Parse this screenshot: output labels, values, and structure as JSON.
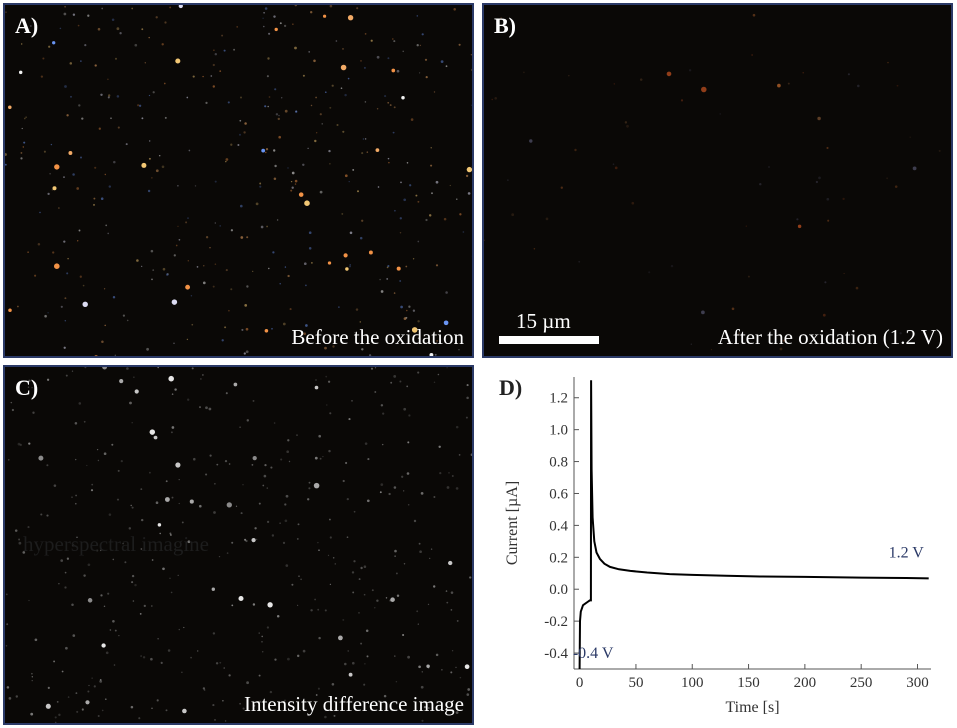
{
  "panels": {
    "a": {
      "label": "A)",
      "caption": "Before the oxidation"
    },
    "b": {
      "label": "B)",
      "caption": "After the oxidation (1.2 V)",
      "scale_bar": "15 µm"
    },
    "c": {
      "label": "C)",
      "caption": "Intensity difference image",
      "faint_text": "hyperspectral imagine"
    },
    "d": {
      "label": "D)"
    }
  },
  "chart_data": {
    "type": "line",
    "xlabel": "Time [s]",
    "ylabel": "Current [µA]",
    "xlim": [
      -5,
      312
    ],
    "ylim": [
      -0.5,
      1.33
    ],
    "xticks": [
      0,
      50,
      100,
      150,
      200,
      250,
      300
    ],
    "yticks": [
      -0.4,
      -0.2,
      0.0,
      0.2,
      0.4,
      0.6,
      0.8,
      1.0,
      1.2
    ],
    "annotations": [
      {
        "text": "1.2 V",
        "x": 290,
        "y": 0.2
      },
      {
        "text": "-0.4 V",
        "x": 12,
        "y": -0.43
      }
    ],
    "series": [
      {
        "color": "#000000",
        "x": [
          0,
          0.3,
          1,
          2,
          3,
          5,
          7,
          9,
          10,
          10.2,
          10.6,
          11.5,
          13,
          15,
          18,
          22,
          27,
          35,
          45,
          60,
          80,
          100,
          130,
          160,
          200,
          250,
          290,
          310
        ],
        "y": [
          -0.5,
          -0.2,
          -0.14,
          -0.12,
          -0.1,
          -0.09,
          -0.08,
          -0.07,
          -0.07,
          1.31,
          0.75,
          0.45,
          0.3,
          0.23,
          0.19,
          0.16,
          0.14,
          0.125,
          0.115,
          0.105,
          0.095,
          0.09,
          0.085,
          0.08,
          0.077,
          0.073,
          0.07,
          0.068
        ]
      }
    ]
  }
}
